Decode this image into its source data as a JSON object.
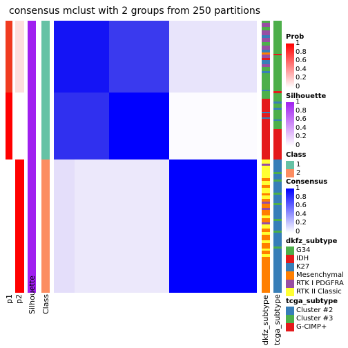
{
  "title": "consensus mclust with 2 groups from 250 partitions",
  "chart_data": {
    "type": "heatmap",
    "title": "consensus mclust with 2 groups from 250 partitions",
    "n_groups": 2,
    "n_partitions": 250,
    "left_annotations": [
      "p1",
      "p2",
      "Silhouette",
      "Class"
    ],
    "right_annotations": [
      "dkfz_subtype",
      "tcga_subtype"
    ],
    "class_row_fraction": {
      "1": 0.5,
      "2": 0.5
    },
    "consensus_blocks": [
      {
        "rows": "class 1 (top)",
        "cols": "class 1",
        "value": 0.9,
        "color": "#0000ff"
      },
      {
        "rows": "class 1 (top)",
        "cols": "class 2",
        "value": 0.1,
        "color": "#e8e4fb"
      },
      {
        "rows": "class 2 (bottom)",
        "cols": "class 1",
        "value": 0.08,
        "color": "#ece8fb"
      },
      {
        "rows": "class 2 (bottom)",
        "cols": "class 2",
        "value": 1.0,
        "color": "#0000ff"
      }
    ],
    "legends": [
      {
        "title": "Prob",
        "ticks": [
          "1",
          "0.8",
          "0.6",
          "0.4",
          "0.2",
          "0"
        ],
        "colors": [
          "#ff0000",
          "#ffffff"
        ]
      },
      {
        "title": "Silhouette",
        "ticks": [
          "1",
          "0.8",
          "0.6",
          "0.4",
          "0.2",
          "0"
        ],
        "colors": [
          "#a020f0",
          "#ffffff"
        ]
      },
      {
        "title": "Class",
        "items": [
          {
            "label": "1",
            "color": "#66c2a5"
          },
          {
            "label": "2",
            "color": "#fc8d62"
          }
        ]
      },
      {
        "title": "Consensus",
        "ticks": [
          "1",
          "0.8",
          "0.6",
          "0.4",
          "0.2",
          "0"
        ],
        "colors": [
          "#0000ff",
          "#ffffff"
        ]
      },
      {
        "title": "dkfz_subtype",
        "items": [
          {
            "label": "G34",
            "color": "#4daf4a"
          },
          {
            "label": "IDH",
            "color": "#e41a1c"
          },
          {
            "label": "K27",
            "color": "#377eb8"
          },
          {
            "label": "Mesenchymal",
            "color": "#ff7f00"
          },
          {
            "label": "RTK I PDGFRA",
            "color": "#984ea3"
          },
          {
            "label": "RTK II Classic",
            "color": "#ffff33"
          }
        ]
      },
      {
        "title": "tcga_subtype",
        "items": [
          {
            "label": "Cluster #2",
            "color": "#377eb8"
          },
          {
            "label": "Cluster #3",
            "color": "#4daf4a"
          },
          {
            "label": "G-CIMP+",
            "color": "#e41a1c"
          }
        ]
      }
    ]
  }
}
